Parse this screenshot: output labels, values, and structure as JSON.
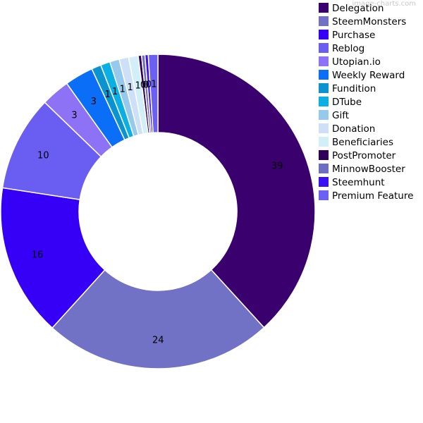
{
  "watermark": "image-charts.com",
  "chart_data": {
    "type": "pie",
    "subtype": "doughnut",
    "legend_position": "right",
    "categories": [
      "Delegation",
      "SteemMonsters",
      "Purchase",
      "Reblog",
      "Utopian.io",
      "Weekly Reward",
      "Fundition",
      "DTube",
      "Gift",
      "Donation",
      "Beneficiaries",
      "PostPromoter",
      "MinnowBooster",
      "Steemhunt",
      "Premium Feature"
    ],
    "values": [
      39,
      24,
      16,
      10,
      3,
      3,
      1,
      1,
      1,
      1,
      1,
      0,
      0,
      0,
      1
    ],
    "value_labels": [
      "39",
      "24",
      "16",
      "10",
      "3",
      "3",
      "1",
      "1",
      "1",
      "1",
      "1",
      "0",
      "0",
      "0",
      "1"
    ],
    "colors": [
      "#3a006e",
      "#7171c6",
      "#3500f5",
      "#6a5ef2",
      "#8d72f5",
      "#0a6ef6",
      "#0b93cf",
      "#0aafe4",
      "#96c9ec",
      "#cde0f7",
      "#d2eef9",
      "#2e0057",
      "#6e6ec0",
      "#3a10f5",
      "#6b60f4"
    ],
    "render_weights": [
      39,
      24,
      16,
      10,
      3,
      3,
      1,
      1,
      1,
      1,
      1,
      0.35,
      0.35,
      0.35,
      1
    ]
  }
}
